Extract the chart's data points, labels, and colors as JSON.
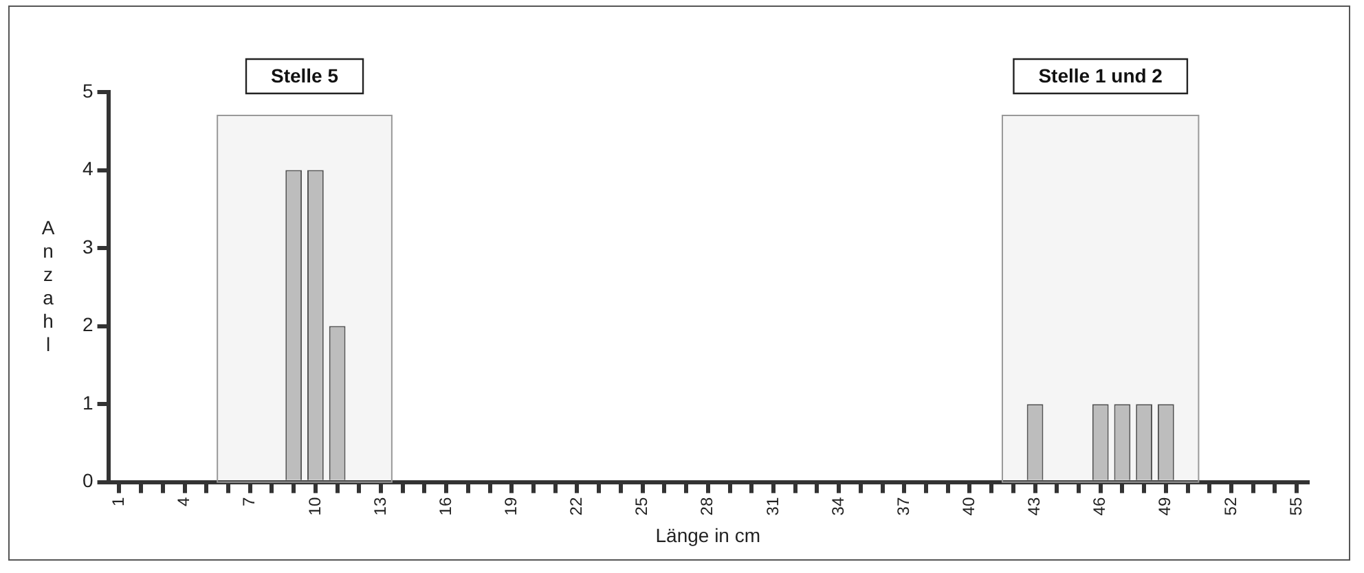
{
  "chart_data": {
    "type": "bar",
    "xlabel": "Länge in cm",
    "ylabel": "Anzahl",
    "x": [
      9,
      10,
      11,
      43,
      46,
      47,
      48,
      49
    ],
    "values": [
      4,
      4,
      2,
      1,
      1,
      1,
      1,
      1
    ],
    "color": "#bdbdbd",
    "xlim": [
      0.5,
      55.5
    ],
    "xticks": [
      1,
      {
        "value": 2,
        "label": null
      },
      {
        "value": 3,
        "label": null
      },
      4,
      {
        "value": 5,
        "label": null
      },
      {
        "value": 6,
        "label": null
      },
      7,
      {
        "value": 8,
        "label": null
      },
      {
        "value": 9,
        "label": null
      },
      10,
      {
        "value": 11,
        "label": null
      },
      {
        "value": 12,
        "label": null
      },
      13,
      {
        "value": 14,
        "label": null
      },
      {
        "value": 15,
        "label": null
      },
      16,
      {
        "value": 17,
        "label": null
      },
      {
        "value": 18,
        "label": null
      },
      19,
      {
        "value": 20,
        "label": null
      },
      {
        "value": 21,
        "label": null
      },
      22,
      {
        "value": 23,
        "label": null
      },
      {
        "value": 24,
        "label": null
      },
      25,
      {
        "value": 26,
        "label": null
      },
      {
        "value": 27,
        "label": null
      },
      28,
      {
        "value": 29,
        "label": null
      },
      {
        "value": 30,
        "label": null
      },
      31,
      {
        "value": 32,
        "label": null
      },
      {
        "value": 33,
        "label": null
      },
      34,
      {
        "value": 35,
        "label": null
      },
      {
        "value": 36,
        "label": null
      },
      37,
      {
        "value": 38,
        "label": null
      },
      {
        "value": 39,
        "label": null
      },
      40,
      {
        "value": 41,
        "label": null
      },
      {
        "value": 42,
        "label": null
      },
      43,
      {
        "value": 44,
        "label": null
      },
      {
        "value": 45,
        "label": null
      },
      46,
      {
        "value": 47,
        "label": null
      },
      {
        "value": 48,
        "label": null
      },
      49,
      {
        "value": 50,
        "label": null
      },
      {
        "value": 51,
        "label": null
      },
      52,
      {
        "value": 53,
        "label": null
      },
      {
        "value": 54,
        "label": null
      },
      55
    ],
    "ylim": [
      0,
      5
    ],
    "yticks": [
      0,
      1,
      2,
      3,
      4,
      5
    ],
    "bands": [
      {
        "axis": "x",
        "from": 5.5,
        "to": 13.5,
        "label": "Stelle 5",
        "color": "#999999"
      },
      {
        "axis": "x",
        "from": 41.5,
        "to": 50.5,
        "label": "Stelle 1 und 2",
        "color": "#999999"
      }
    ],
    "grid": false,
    "legend": false
  }
}
